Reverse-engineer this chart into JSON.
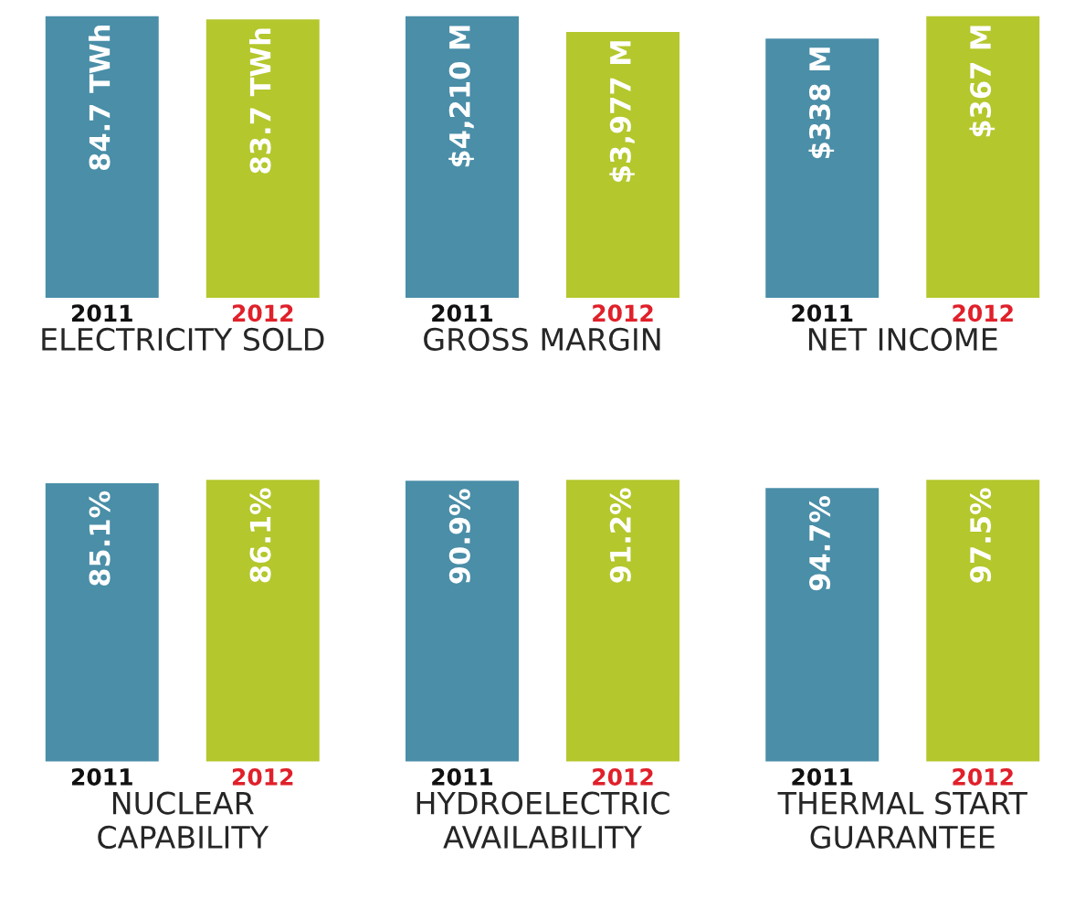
{
  "chart_data": [
    {
      "type": "bar",
      "title": "ELECTRICITY SOLD",
      "categories": [
        "2011",
        "2012"
      ],
      "values": [
        84.7,
        83.7
      ],
      "value_labels": [
        "84.7 TWh",
        "83.7 TWh"
      ],
      "colors": [
        "#4a8ea8",
        "#b4c72c"
      ],
      "tick_labels": "x"
    },
    {
      "type": "bar",
      "title": "GROSS MARGIN",
      "categories": [
        "2011",
        "2012"
      ],
      "values": [
        4210,
        3977
      ],
      "value_labels": [
        "$4,210 M",
        "$3,977 M"
      ],
      "colors": [
        "#4a8ea8",
        "#b4c72c"
      ],
      "tick_labels": "x"
    },
    {
      "type": "bar",
      "title": "NET INCOME",
      "categories": [
        "2011",
        "2012"
      ],
      "values": [
        338,
        367
      ],
      "value_labels": [
        "$338 M",
        "$367 M"
      ],
      "colors": [
        "#4a8ea8",
        "#b4c72c"
      ],
      "tick_labels": "x"
    },
    {
      "type": "bar",
      "title": "NUCLEAR\nCAPABILITY",
      "categories": [
        "2011",
        "2012"
      ],
      "values": [
        85.1,
        86.1
      ],
      "value_labels": [
        "85.1%",
        "86.1%"
      ],
      "colors": [
        "#4a8ea8",
        "#b4c72c"
      ],
      "tick_labels": "x"
    },
    {
      "type": "bar",
      "title": "HYDROELECTRIC\nAVAILABILITY",
      "categories": [
        "2011",
        "2012"
      ],
      "values": [
        90.9,
        91.2
      ],
      "value_labels": [
        "90.9%",
        "91.2%"
      ],
      "colors": [
        "#4a8ea8",
        "#b4c72c"
      ],
      "tick_labels": "x"
    },
    {
      "type": "bar",
      "title": "THERMAL START\nGUARANTEE",
      "categories": [
        "2011",
        "2012"
      ],
      "values": [
        94.7,
        97.5
      ],
      "value_labels": [
        "94.7%",
        "97.5%"
      ],
      "colors": [
        "#4a8ea8",
        "#b4c72c"
      ],
      "tick_labels": "x"
    }
  ]
}
